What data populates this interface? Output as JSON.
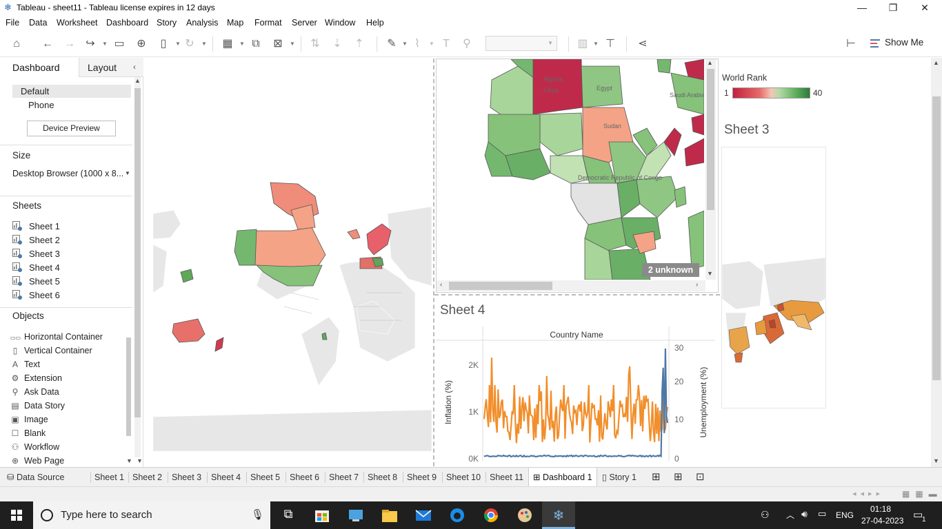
{
  "window": {
    "title": "Tableau - sheet11 - Tableau license expires in 12 days",
    "minimize": "—",
    "restore": "❐",
    "close": "✕"
  },
  "menu": [
    "File",
    "Data",
    "Worksheet",
    "Dashboard",
    "Story",
    "Analysis",
    "Map",
    "Format",
    "Server",
    "Window",
    "Help"
  ],
  "toolbar": {
    "show_me_label": "Show Me"
  },
  "left_panel": {
    "tabs": {
      "dashboard": "Dashboard",
      "layout": "Layout"
    },
    "devices": {
      "default": "Default",
      "phone": "Phone",
      "preview_button": "Device Preview"
    },
    "size": {
      "title": "Size",
      "value": "Desktop Browser (1000 x 8..."
    },
    "sheets": {
      "title": "Sheets",
      "items": [
        "Sheet 1",
        "Sheet 2",
        "Sheet 3",
        "Sheet 4",
        "Sheet 5",
        "Sheet 6"
      ]
    },
    "objects": {
      "title": "Objects",
      "items": [
        {
          "label": "Horizontal Container",
          "icon": "horizontal-container-icon"
        },
        {
          "label": "Vertical Container",
          "icon": "vertical-container-icon"
        },
        {
          "label": "Text",
          "icon": "text-icon"
        },
        {
          "label": "Extension",
          "icon": "extension-icon"
        },
        {
          "label": "Ask Data",
          "icon": "ask-data-icon"
        },
        {
          "label": "Data Story",
          "icon": "data-story-icon"
        },
        {
          "label": "Image",
          "icon": "image-icon"
        },
        {
          "label": "Blank",
          "icon": "blank-icon"
        },
        {
          "label": "Workflow",
          "icon": "workflow-icon"
        },
        {
          "label": "Web Page",
          "icon": "web-page-icon"
        }
      ]
    }
  },
  "dashboard": {
    "africa_map": {
      "labels": [
        "Libya",
        "Egypt",
        "Algeria",
        "Saudi Arabia",
        "Sudan",
        "Democratic Republic of Congo"
      ],
      "unknown_badge": "2 unknown"
    },
    "legend": {
      "title": "World Rank",
      "min": "1",
      "max": "40"
    },
    "sheet3": {
      "title": "Sheet 3"
    },
    "sheet4": {
      "title": "Sheet 4",
      "header": "Country Name",
      "left_axis_label": "Inflation (%)",
      "right_axis_label": "Unemployment (%)",
      "left_ticks": [
        "2K",
        "1K",
        "0K"
      ],
      "right_ticks": [
        "30",
        "20",
        "10",
        "0"
      ]
    }
  },
  "sheet_tabs": {
    "data_source": "Data Source",
    "tabs": [
      "Sheet 1",
      "Sheet 2",
      "Sheet 3",
      "Sheet 4",
      "Sheet 5",
      "Sheet 6",
      "Sheet 7",
      "Sheet 8",
      "Sheet 9",
      "Sheet 10",
      "Sheet 11"
    ],
    "dashboard": "Dashboard 1",
    "story": "Story 1"
  },
  "taskbar": {
    "search_placeholder": "Type here to search",
    "language": "ENG",
    "time": "01:18",
    "date": "27-04-2023",
    "notification_count": "1"
  },
  "colors": {
    "accent": "#2a6db2",
    "inflation_line": "#f28e2b",
    "unemployment_line": "#4e79a7",
    "rank_low": "#c2223f",
    "rank_high": "#2b7a3b"
  }
}
